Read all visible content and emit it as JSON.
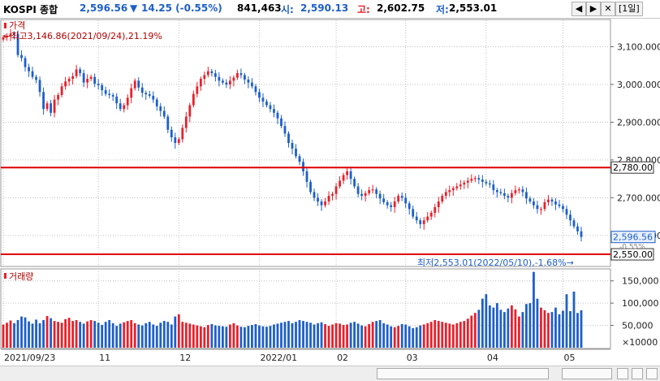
{
  "header": {
    "name": "KOSPI 종합",
    "price": "2,596.56",
    "change_arrow": "▼",
    "change": "14.25 (-0.55%)",
    "volume": "841,463",
    "open_label": "시:",
    "open": "2,590.13",
    "high_label": "고:",
    "high": "2,602.75",
    "low_label": "저:",
    "low": "2,553.01",
    "period": "[1일]",
    "buttons": [
      "◀",
      "▶",
      "✕"
    ]
  },
  "price_panel": {
    "legend": "가격",
    "max_note": "←최고3,146.86(2021/09/24),21.19%",
    "min_note": "최저2,553.01(2022/05/10),-1.68%→",
    "current_label": "2,596.56",
    "change_tag": "-0.55%",
    "hlines": [
      {
        "value": 2780,
        "label": "2,780.00"
      },
      {
        "value": 2550,
        "label": "2,550.00"
      }
    ],
    "yticks": [
      {
        "value": 3100,
        "label": "3,100.000"
      },
      {
        "value": 3000,
        "label": "3,000.000"
      },
      {
        "value": 2900,
        "label": "2,900.000"
      },
      {
        "value": 2800,
        "label": "2,800.000"
      },
      {
        "value": 2700,
        "label": "2,700.000"
      },
      {
        "value": 2600,
        "label": "2,600.000"
      }
    ]
  },
  "volume_panel": {
    "legend": "거래량",
    "yticks": [
      {
        "value": 150000,
        "label": "150,000"
      },
      {
        "value": 100000,
        "label": "100,000"
      },
      {
        "value": 50000,
        "label": "50,000"
      }
    ],
    "unit": "×10000"
  },
  "x_labels": [
    {
      "index": 0,
      "label": "2021/09/23"
    },
    {
      "index": 26,
      "label": "11"
    },
    {
      "index": 48,
      "label": "12"
    },
    {
      "index": 70,
      "label": "2022/01"
    },
    {
      "index": 91,
      "label": "02"
    },
    {
      "index": 110,
      "label": "03"
    },
    {
      "index": 132,
      "label": "04"
    },
    {
      "index": 153,
      "label": "05"
    }
  ],
  "colors": {
    "up": "#e8202a",
    "down": "#1e5fc8",
    "line": "#e00000",
    "grid": "#c0c0c0"
  },
  "chart_data": {
    "type": "candlestick",
    "title": "KOSPI 종합",
    "ylim": [
      2520,
      3170
    ],
    "volume_ylim": [
      0,
      175000
    ],
    "series": [
      {
        "name": "가격",
        "close": [
          3125,
          3127,
          3135,
          3134,
          3078,
          3070,
          3046,
          3035,
          3020,
          3012,
          2980,
          2935,
          2950,
          2925,
          2960,
          2972,
          2995,
          3008,
          3015,
          3022,
          3040,
          3030,
          3005,
          3015,
          3020,
          3002,
          2998,
          2985,
          2975,
          2972,
          2968,
          2950,
          2935,
          2945,
          2965,
          2990,
          3010,
          2992,
          2978,
          2974,
          2970,
          2960,
          2942,
          2930,
          2915,
          2880,
          2860,
          2845,
          2855,
          2885,
          2915,
          2945,
          2975,
          2995,
          3015,
          3025,
          3035,
          3030,
          3020,
          3010,
          3005,
          3000,
          3010,
          3018,
          3030,
          3025,
          3013,
          3005,
          2995,
          2980,
          2965,
          2955,
          2945,
          2935,
          2925,
          2910,
          2890,
          2870,
          2845,
          2830,
          2810,
          2795,
          2770,
          2742,
          2715,
          2700,
          2690,
          2680,
          2690,
          2705,
          2710,
          2730,
          2745,
          2760,
          2770,
          2750,
          2730,
          2710,
          2705,
          2712,
          2720,
          2722,
          2710,
          2698,
          2688,
          2680,
          2675,
          2690,
          2705,
          2700,
          2685,
          2670,
          2650,
          2640,
          2630,
          2640,
          2650,
          2660,
          2675,
          2690,
          2705,
          2715,
          2720,
          2725,
          2730,
          2735,
          2740,
          2745,
          2750,
          2752,
          2748,
          2742,
          2738,
          2735,
          2720,
          2715,
          2712,
          2705,
          2700,
          2712,
          2720,
          2722,
          2715,
          2698,
          2690,
          2680,
          2670,
          2670,
          2688,
          2695,
          2690,
          2682,
          2678,
          2670,
          2655,
          2640,
          2624,
          2611,
          2596
        ],
        "volume": [
          52000,
          56000,
          61000,
          55000,
          62000,
          70000,
          68000,
          59000,
          54000,
          63000,
          55000,
          62000,
          71000,
          66000,
          60000,
          58000,
          56000,
          64000,
          67000,
          60000,
          62000,
          58000,
          54000,
          59000,
          62000,
          60000,
          56000,
          51000,
          58000,
          62000,
          55000,
          49000,
          54000,
          57000,
          60000,
          62000,
          55000,
          52000,
          50000,
          55000,
          58000,
          52000,
          49000,
          56000,
          60000,
          58000,
          52000,
          70000,
          75000,
          58000,
          56000,
          54000,
          52000,
          50000,
          48000,
          46000,
          51000,
          53000,
          50000,
          49000,
          48000,
          47000,
          52000,
          55000,
          50000,
          47000,
          46000,
          49000,
          51000,
          53000,
          50000,
          48000,
          47000,
          49000,
          52000,
          54000,
          56000,
          58000,
          60000,
          55000,
          58000,
          62000,
          60000,
          58000,
          56000,
          52000,
          55000,
          57000,
          53000,
          49000,
          52000,
          55000,
          54000,
          51000,
          52000,
          56000,
          58000,
          54000,
          50000,
          48000,
          53000,
          58000,
          60000,
          62000,
          55000,
          52000,
          48000,
          46000,
          49000,
          53000,
          52000,
          48000,
          44000,
          46000,
          50000,
          52000,
          55000,
          58000,
          62000,
          60000,
          58000,
          56000,
          54000,
          52000,
          55000,
          58000,
          60000,
          65000,
          72000,
          78000,
          85000,
          110000,
          120000,
          95000,
          90000,
          100000,
          85000,
          80000,
          88000,
          95000,
          86000,
          70000,
          80000,
          98000,
          100000,
          170000,
          110000,
          90000,
          84000,
          78000,
          80000,
          90000,
          75000,
          83000,
          120000,
          82000,
          126000,
          78000,
          84000
        ]
      }
    ]
  }
}
